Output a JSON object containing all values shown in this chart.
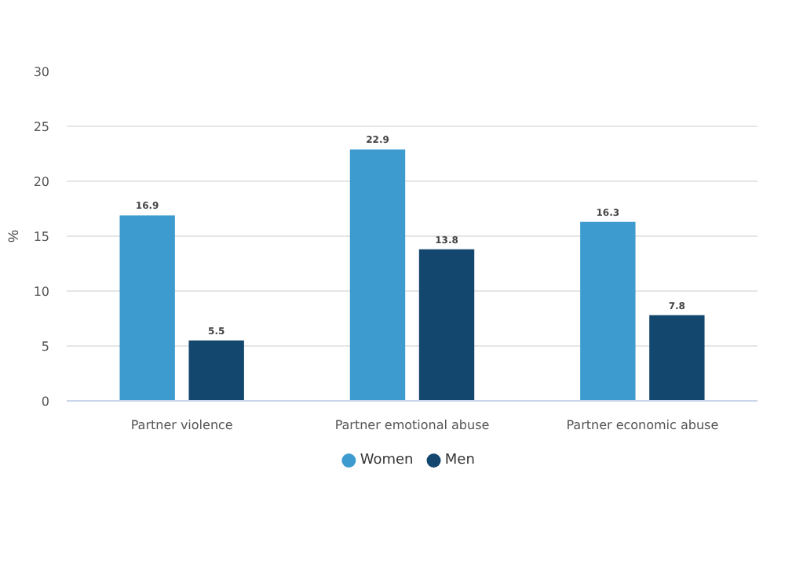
{
  "chart_data": {
    "type": "bar",
    "ylabel": "%",
    "categories": [
      "Partner violence",
      "Partner emotional abuse",
      "Partner economic abuse"
    ],
    "series": [
      {
        "name": "Women",
        "color": "#3d9bd0",
        "values": [
          16.9,
          22.9,
          16.3
        ]
      },
      {
        "name": "Men",
        "color": "#14476e",
        "values": [
          5.5,
          13.8,
          7.8
        ]
      }
    ],
    "ylim": [
      0,
      30
    ],
    "yticks": [
      0,
      5,
      10,
      15,
      20,
      25,
      30
    ],
    "grid": "y",
    "legend": "bottom",
    "data_labels": true
  }
}
